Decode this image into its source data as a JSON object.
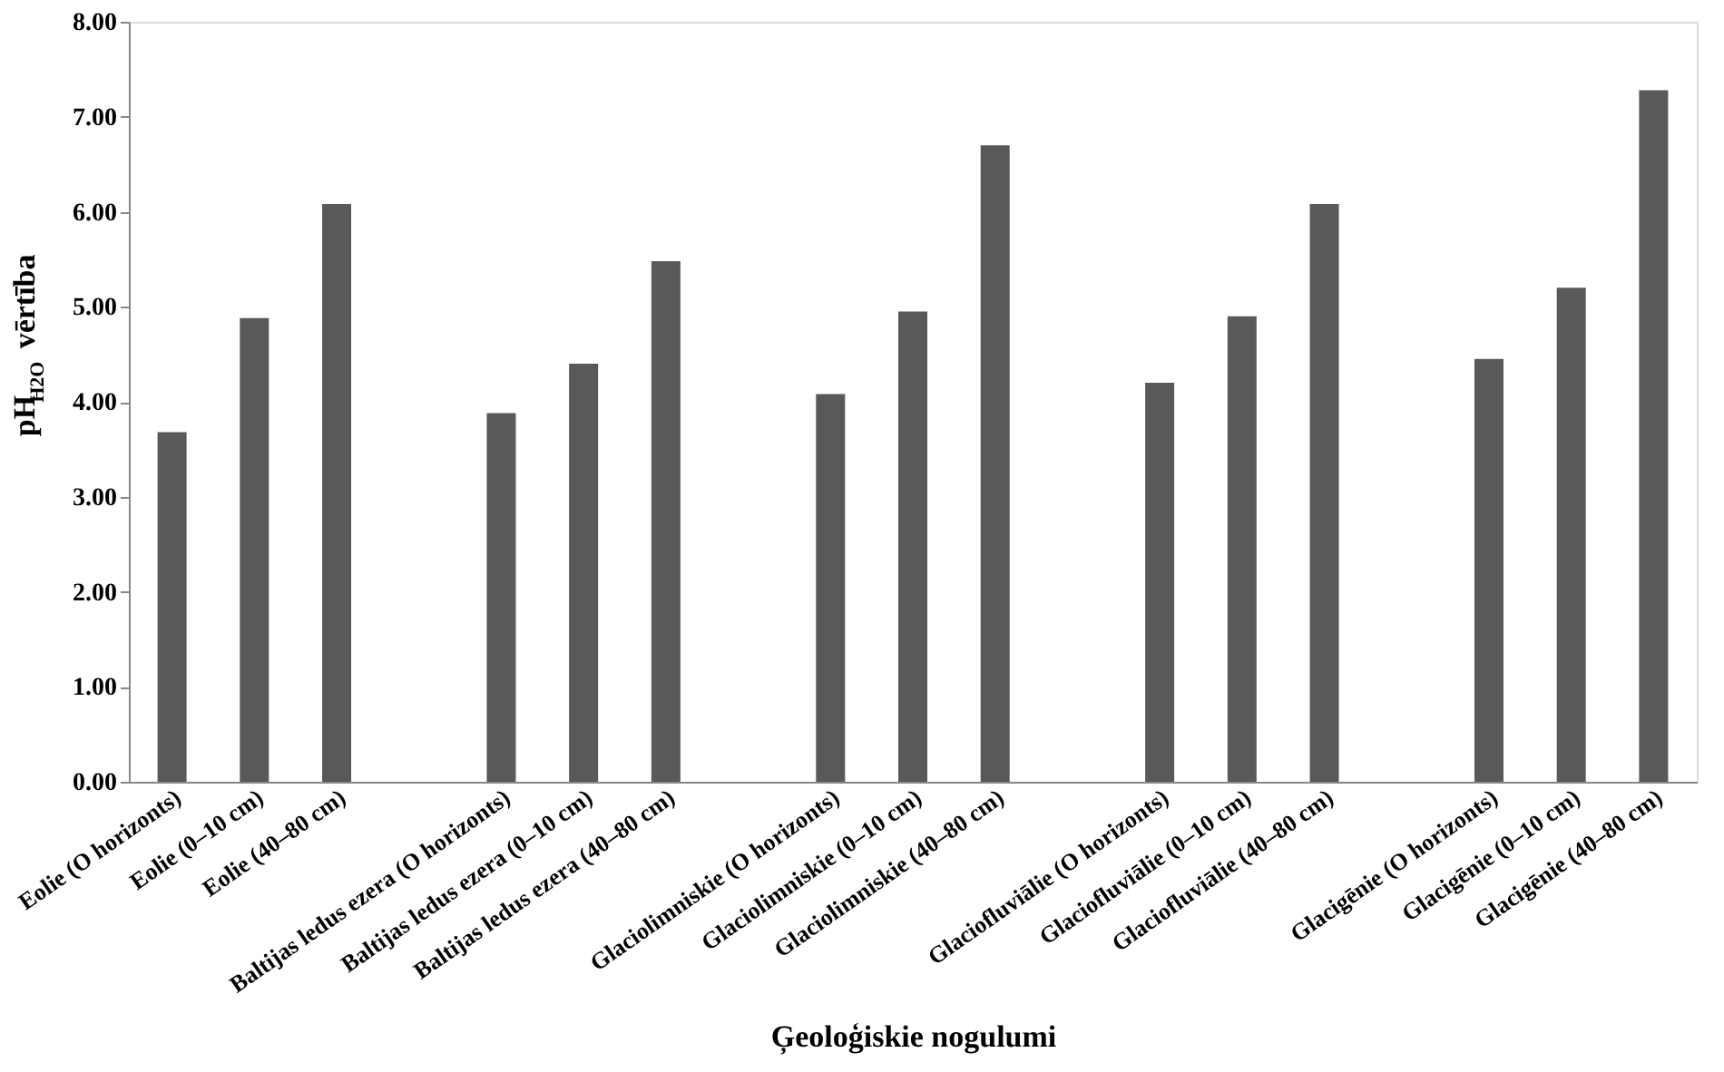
{
  "chart_data": {
    "type": "bar",
    "xlabel": "Ģeoloģiskie nogulumi",
    "ylabel": "pH$_{H2O}$ vērtība",
    "categories": [
      "Eolie (O horizonts)",
      "Eolie (0–10 cm)",
      "Eolie (40–80 cm)",
      null,
      "Baltijas ledus ezera (O horizonts)",
      "Baltijas ledus ezera (0–10 cm)",
      "Baltijas ledus ezera (40–80 cm)",
      null,
      "Glaciolimniskie (O horizonts)",
      "Glaciolimniskie (0–10 cm)",
      "Glaciolimniskie (40–80 cm)",
      null,
      "Glaciofluviālie (O horizonts)",
      "Glaciofluviālie (0–10 cm)",
      "Glaciofluviālie (40–80 cm)",
      null,
      "Glacigēnie (O horizonts)",
      "Glacigēnie (0–10 cm)",
      "Glacigēnie (40–80 cm)"
    ],
    "values": [
      3.68,
      4.88,
      6.08,
      null,
      3.88,
      4.4,
      5.48,
      null,
      4.08,
      4.95,
      6.7,
      null,
      4.2,
      4.9,
      6.08,
      null,
      4.45,
      5.2,
      7.28
    ],
    "color": "#595959",
    "ylim": [
      0,
      8
    ],
    "yticks": [
      {
        "value": 0,
        "label": "0.00"
      },
      {
        "value": 1,
        "label": "1.00"
      },
      {
        "value": 2,
        "label": "2.00"
      },
      {
        "value": 3,
        "label": "3.00"
      },
      {
        "value": 4,
        "label": "4.00"
      },
      {
        "value": 5,
        "label": "5.00"
      },
      {
        "value": 6,
        "label": "6.00"
      },
      {
        "value": 7,
        "label": "7.00"
      },
      {
        "value": 8,
        "label": "8.00"
      }
    ],
    "grid": false
  }
}
